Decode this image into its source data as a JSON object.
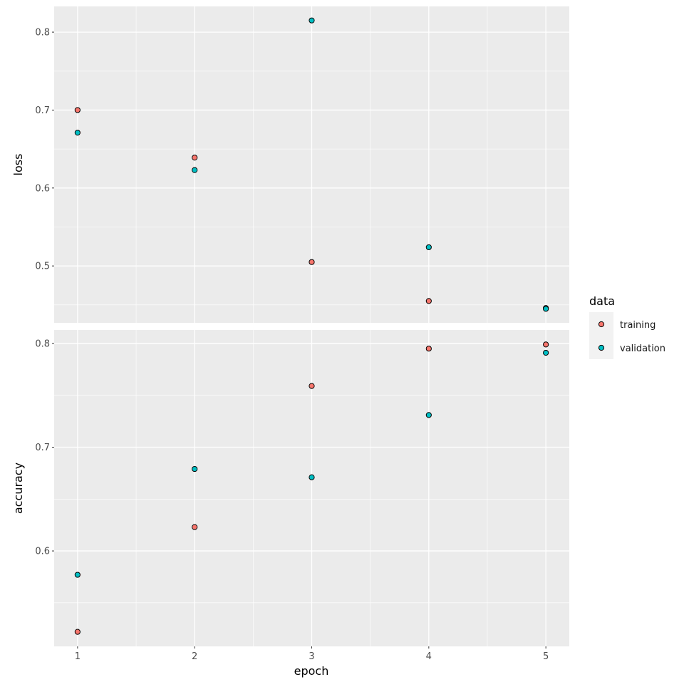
{
  "chart_data": [
    {
      "type": "scatter",
      "panel": "loss",
      "ylabel": "loss",
      "x": [
        1,
        2,
        3,
        4,
        5
      ],
      "series": [
        {
          "name": "training",
          "values": [
            0.7,
            0.639,
            0.505,
            0.455,
            0.446
          ]
        },
        {
          "name": "validation",
          "values": [
            0.671,
            0.623,
            0.815,
            0.524,
            0.445
          ]
        }
      ],
      "xlim": [
        0.8,
        5.2
      ],
      "ylim": [
        0.427,
        0.833
      ],
      "yticks": [
        0.5,
        0.6,
        0.7,
        0.8
      ],
      "ytick_labels": [
        "0.5",
        "0.6",
        "0.7",
        "0.8"
      ],
      "grid": true
    },
    {
      "type": "scatter",
      "panel": "accuracy",
      "ylabel": "accuracy",
      "xlabel": "epoch",
      "x": [
        1,
        2,
        3,
        4,
        5
      ],
      "series": [
        {
          "name": "training",
          "values": [
            0.522,
            0.623,
            0.759,
            0.795,
            0.799
          ]
        },
        {
          "name": "validation",
          "values": [
            0.577,
            0.679,
            0.671,
            0.731,
            0.791
          ]
        }
      ],
      "xlim": [
        0.8,
        5.2
      ],
      "ylim": [
        0.508,
        0.813
      ],
      "xticks": [
        1,
        2,
        3,
        4,
        5
      ],
      "xtick_labels": [
        "1",
        "2",
        "3",
        "4",
        "5"
      ],
      "yticks": [
        0.6,
        0.7,
        0.8
      ],
      "ytick_labels": [
        "0.6",
        "0.7",
        "0.8"
      ],
      "grid": true
    }
  ],
  "legend": {
    "title": "data",
    "placement": "right",
    "items": [
      {
        "label": "training",
        "color": "#F8766D"
      },
      {
        "label": "validation",
        "color": "#00BFC4"
      }
    ]
  },
  "colors": {
    "panel_bg": "#EBEBEB",
    "grid": "#FFFFFF"
  }
}
